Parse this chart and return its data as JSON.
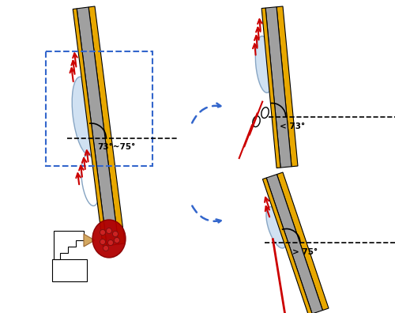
{
  "fig_width": 5.0,
  "fig_height": 3.96,
  "dpi": 100,
  "bg_color": "#ffffff",
  "gold_color": "#E8A800",
  "gray_color": "#909090",
  "light_blue": "#C8DCF0",
  "red_color": "#CC0000",
  "dark_red": "#B00000",
  "blue_dashed": "#3366CC",
  "black": "#000000",
  "tan_color": "#D4A860"
}
